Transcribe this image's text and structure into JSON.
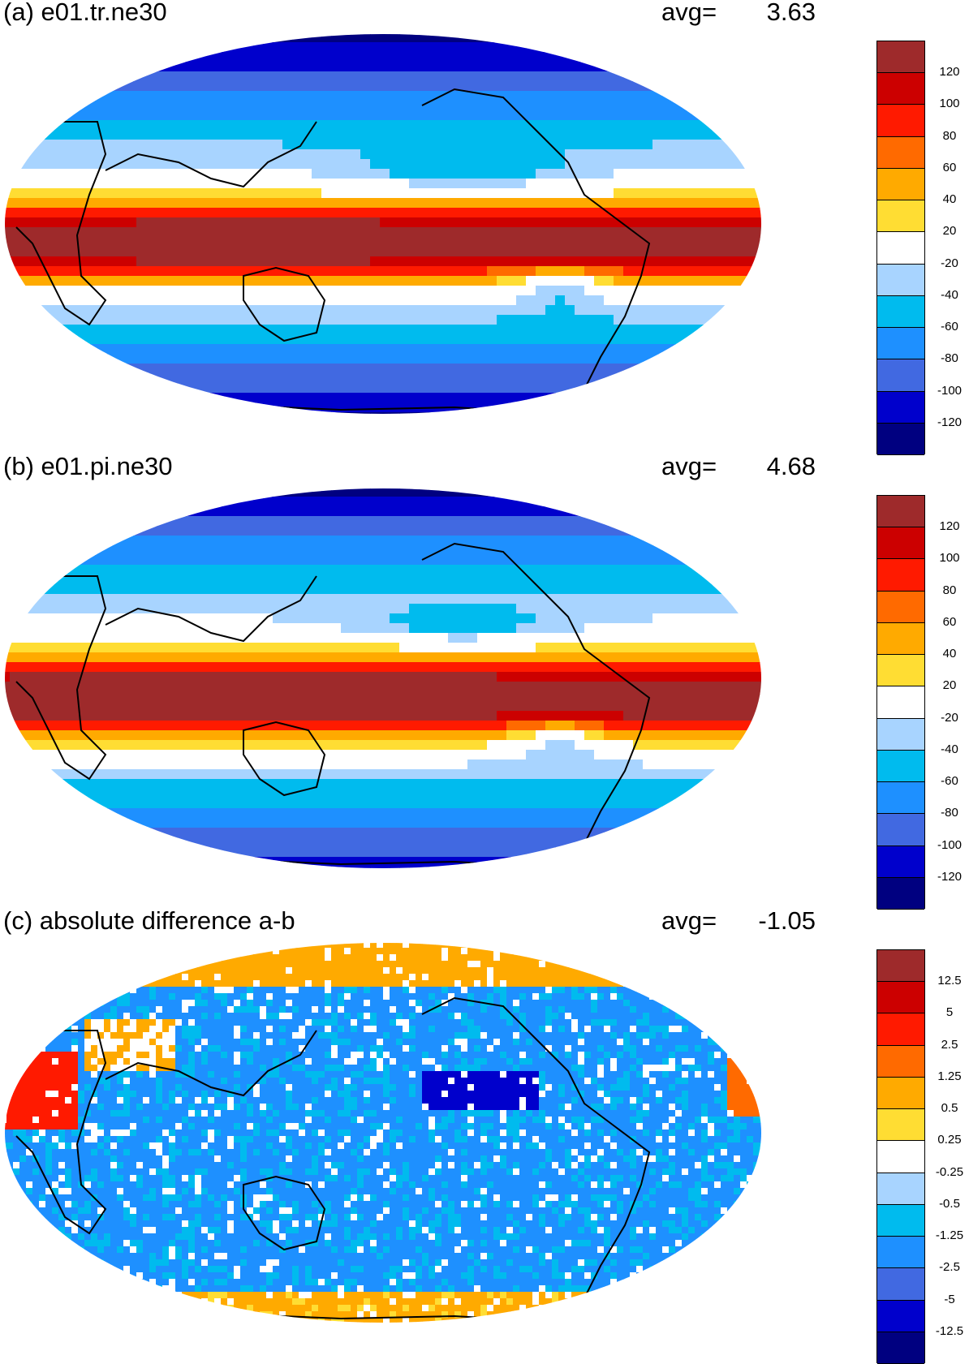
{
  "panels": [
    {
      "title": "(a) e01.tr.ne30",
      "avg_label": "avg=",
      "avg_value": "3.63",
      "colorbar_labels": [
        "120",
        "100",
        "80",
        "60",
        "40",
        "20",
        "-20",
        "-40",
        "-60",
        "-80",
        "-100",
        "-120"
      ],
      "variant": "mean"
    },
    {
      "title": "(b) e01.pi.ne30",
      "avg_label": "avg=",
      "avg_value": "4.68",
      "colorbar_labels": [
        "120",
        "100",
        "80",
        "60",
        "40",
        "20",
        "-20",
        "-40",
        "-60",
        "-80",
        "-100",
        "-120"
      ],
      "variant": "mean"
    },
    {
      "title": "(c) absolute difference a-b",
      "avg_label": "avg=",
      "avg_value": "-1.05",
      "colorbar_labels": [
        "12.5",
        "5",
        "2.5",
        "1.25",
        "0.5",
        "0.25",
        "-0.25",
        "-0.5",
        "-1.25",
        "-2.5",
        "-5",
        "-12.5"
      ],
      "variant": "diff"
    }
  ],
  "colors": {
    "palette_top_to_bottom": [
      "#9e2a2b",
      "#cc0000",
      "#ff1a00",
      "#ff6a00",
      "#ffaa00",
      "#ffdd33",
      "#ffffff",
      "#a8d4ff",
      "#00bbee",
      "#1e90ff",
      "#4169e1",
      "#0000cc",
      "#000080"
    ],
    "coastline": "#000000"
  },
  "projection": "Robinson",
  "map_center_longitude": "180"
}
